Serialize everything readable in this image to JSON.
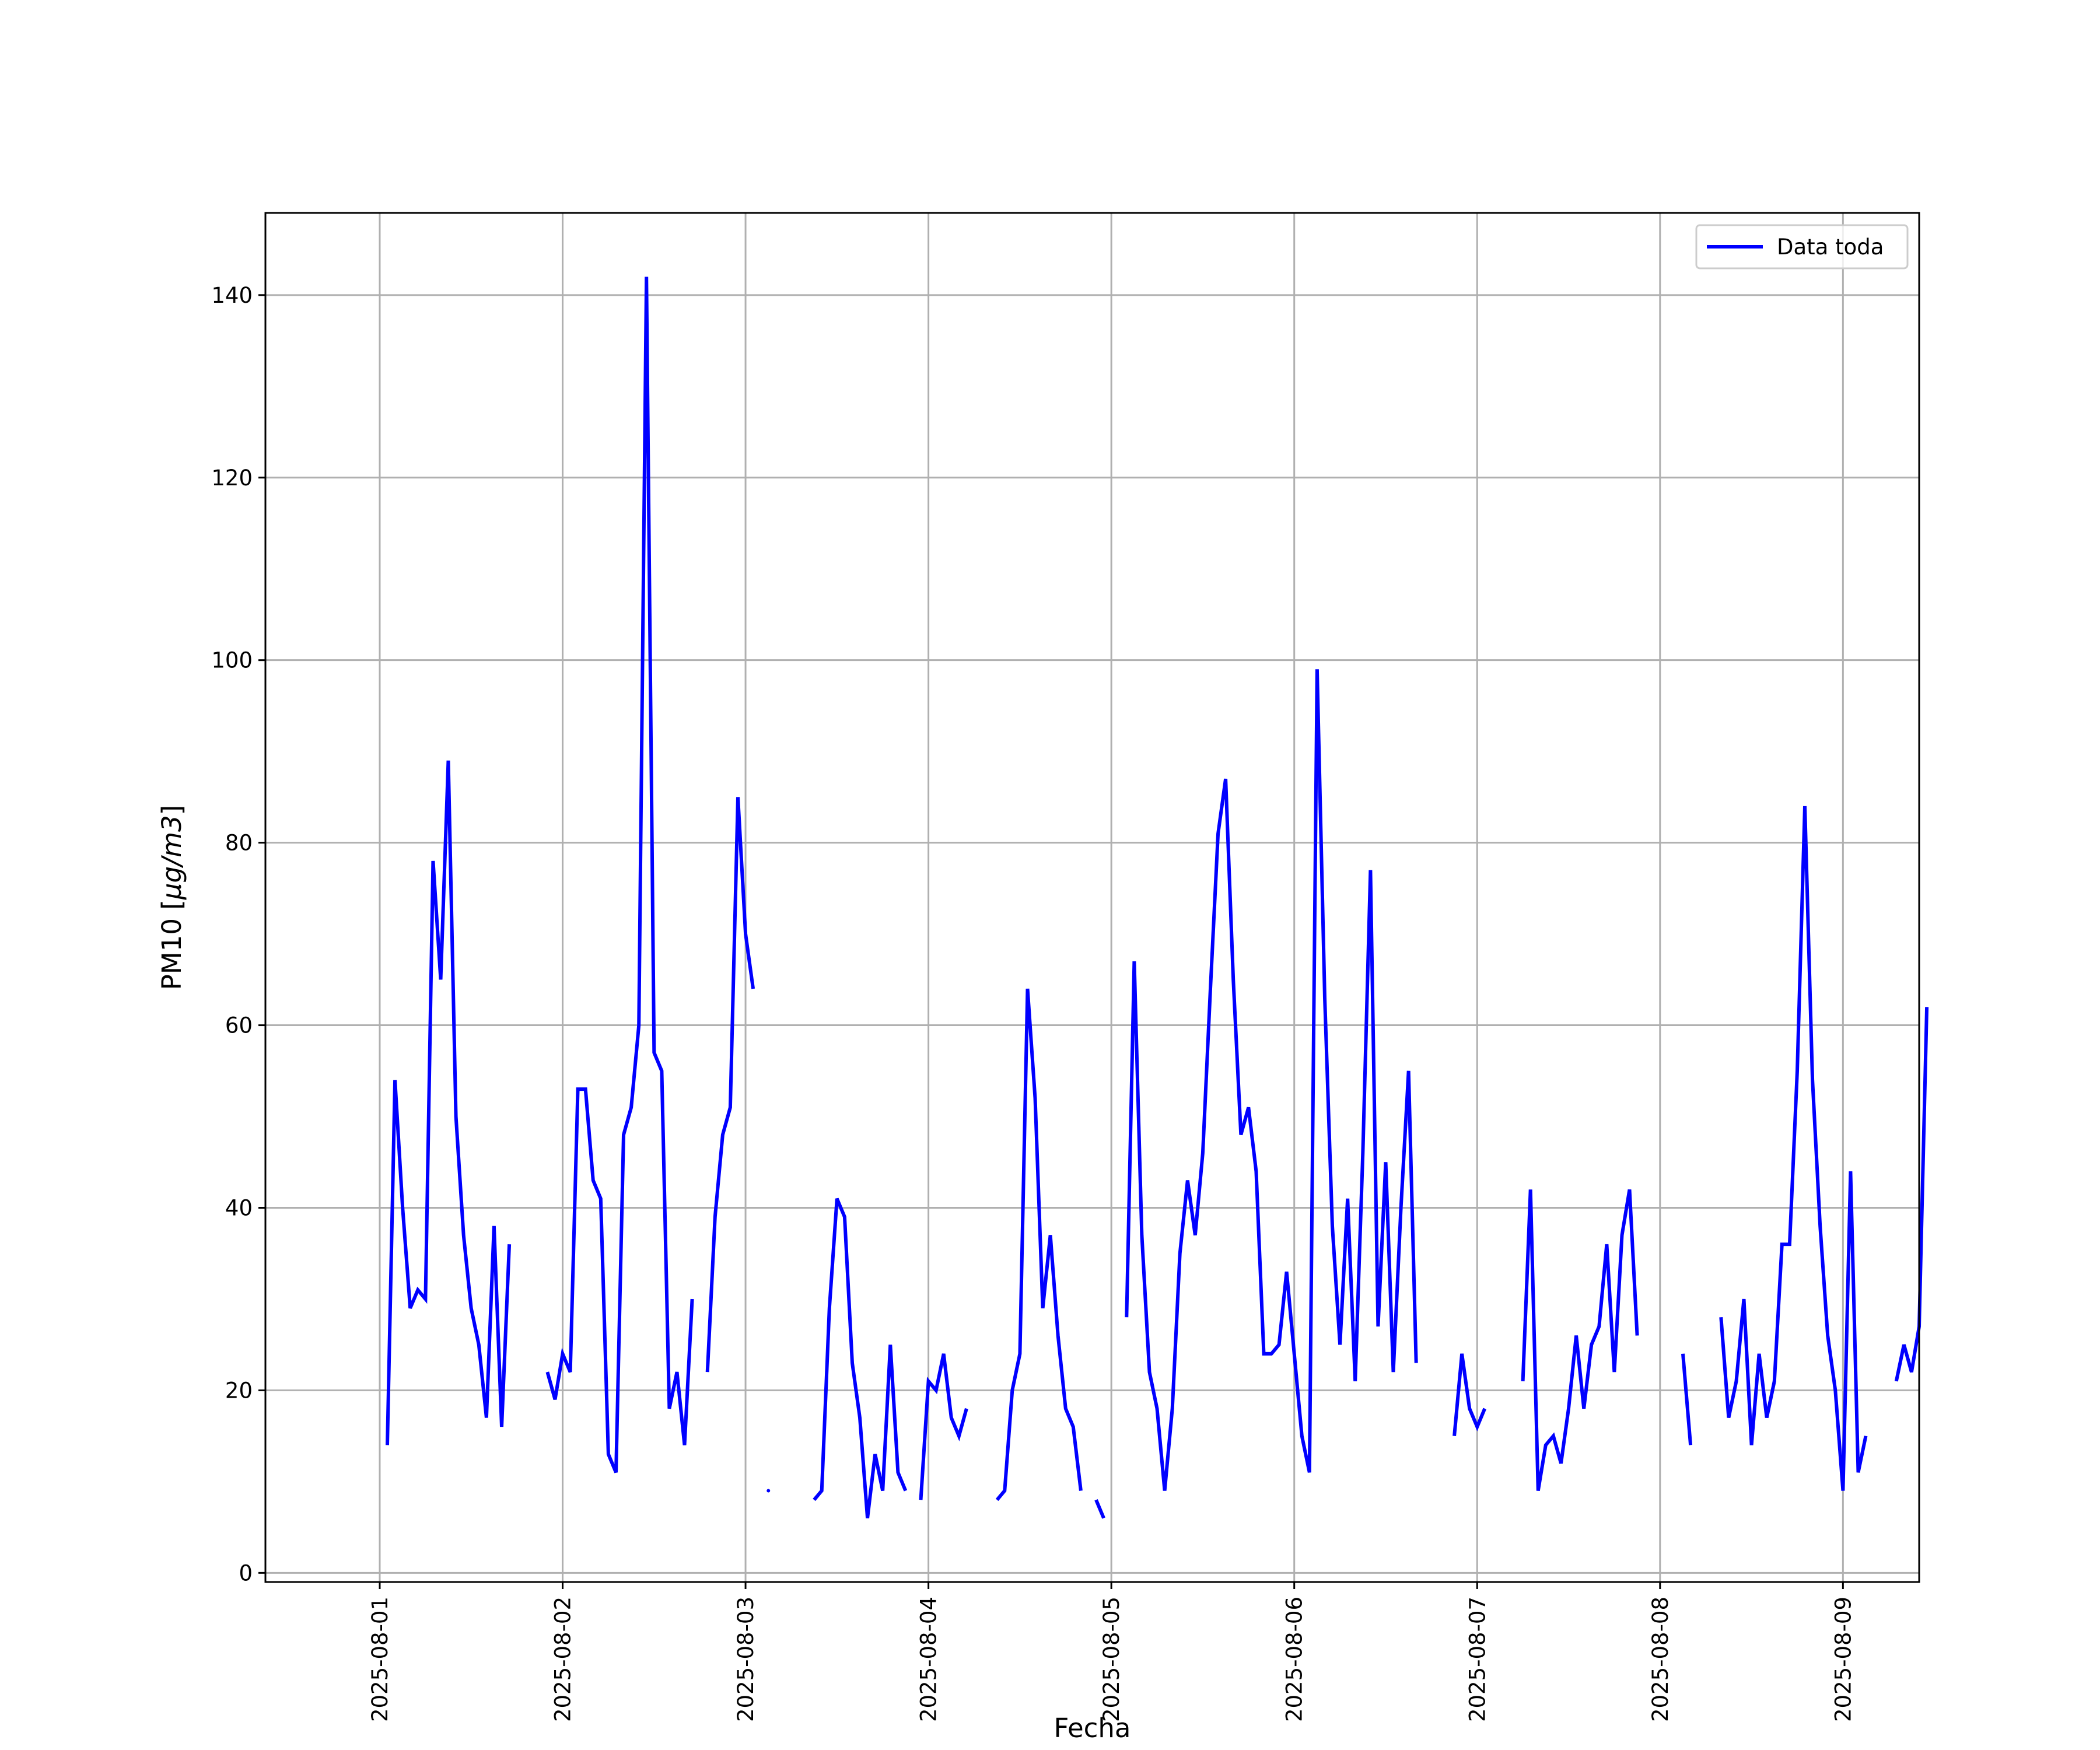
{
  "chart_data": {
    "type": "line",
    "title": "",
    "xlabel": "Fecha",
    "ylabel_text": "PM10 [",
    "ylabel_math": "μg/m3",
    "ylabel_close": "]",
    "x_ticks": [
      "2025-08-01",
      "2025-08-02",
      "2025-08-03",
      "2025-08-04",
      "2025-08-05",
      "2025-08-06",
      "2025-08-07",
      "2025-08-08",
      "2025-08-09"
    ],
    "y_ticks": [
      0,
      20,
      40,
      60,
      80,
      100,
      120,
      140
    ],
    "xlim": [
      "2025-07-31 09:00",
      "2025-08-09 10:00"
    ],
    "ylim": [
      -1,
      149
    ],
    "grid": true,
    "legend_position": "top-right",
    "line_color": "#0000ff",
    "series": [
      {
        "name": "Data toda",
        "x_start": "2025-08-01 01:00",
        "x_step": "1 hour",
        "values": [
          14,
          54,
          40,
          29,
          31,
          30,
          78,
          65,
          89,
          50,
          37,
          29,
          25,
          17,
          38,
          16,
          36,
          null,
          null,
          null,
          null,
          22,
          19,
          24,
          22,
          53,
          53,
          43,
          41,
          13,
          11,
          48,
          51,
          60,
          142,
          57,
          55,
          18,
          22,
          14,
          30,
          null,
          22,
          39,
          48,
          51,
          85,
          70,
          64,
          null,
          9,
          null,
          null,
          null,
          null,
          null,
          8,
          9,
          29,
          41,
          39,
          23,
          17,
          6,
          13,
          9,
          25,
          11,
          9,
          null,
          8,
          21,
          20,
          24,
          17,
          15,
          18,
          null,
          null,
          null,
          8,
          9,
          20,
          24,
          64,
          52,
          29,
          37,
          26,
          18,
          16,
          9,
          null,
          8,
          6,
          null,
          null,
          28,
          67,
          37,
          22,
          18,
          9,
          18,
          35,
          43,
          37,
          46,
          64,
          81,
          87,
          65,
          48,
          51,
          44,
          24,
          24,
          25,
          33,
          24,
          15,
          11,
          99,
          63,
          38,
          25,
          41,
          21,
          46,
          77,
          27,
          45,
          22,
          40,
          55,
          23,
          null,
          null,
          null,
          null,
          15,
          24,
          18,
          16,
          18,
          null,
          null,
          null,
          null,
          21,
          42,
          9,
          14,
          15,
          12,
          18,
          26,
          18,
          25,
          27,
          36,
          22,
          37,
          42,
          26,
          null,
          null,
          null,
          null,
          null,
          24,
          14,
          null,
          null,
          null,
          28,
          17,
          21,
          30,
          14,
          24,
          17,
          21,
          36,
          36,
          55,
          84,
          54,
          38,
          26,
          20,
          9,
          44,
          11,
          15,
          null,
          null,
          null,
          21,
          25,
          22,
          27,
          62
        ]
      }
    ]
  }
}
